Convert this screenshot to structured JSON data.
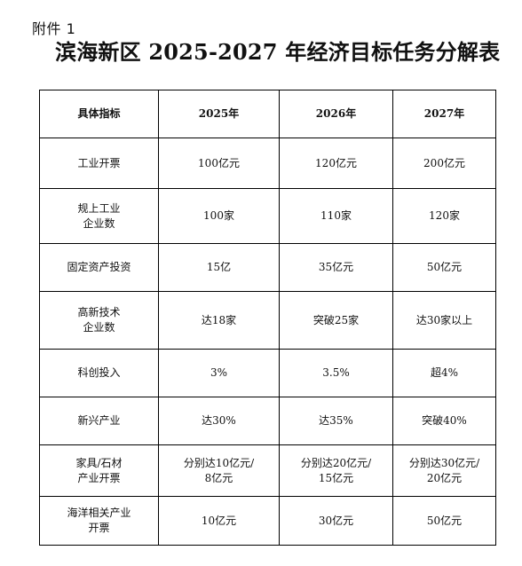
{
  "attachment_label": "附件 1",
  "title": "滨海新区 2025-2027 年经济目标任务分解表",
  "table": {
    "headers": [
      "具体指标",
      "2025年",
      "2026年",
      "2027年"
    ],
    "rows": [
      [
        "工业开票",
        "100亿元",
        "120亿元",
        "200亿元"
      ],
      [
        "规上工业\n企业数",
        "100家",
        "110家",
        "120家"
      ],
      [
        "固定资产投资",
        "15亿",
        "35亿元",
        "50亿元"
      ],
      [
        "高新技术\n企业数",
        "达18家",
        "突破25家",
        "达30家以上"
      ],
      [
        "科创投入",
        "3%",
        "3.5%",
        "超4%"
      ],
      [
        "新兴产业",
        "达30%",
        "达35%",
        "突破40%"
      ],
      [
        "家具/石材\n产业开票",
        "分别达10亿元/\n8亿元",
        "分别达20亿元/\n15亿元",
        "分别达30亿元/\n20亿元"
      ],
      [
        "海洋相关产业\n开票",
        "10亿元",
        "30亿元",
        "50亿元"
      ]
    ]
  }
}
